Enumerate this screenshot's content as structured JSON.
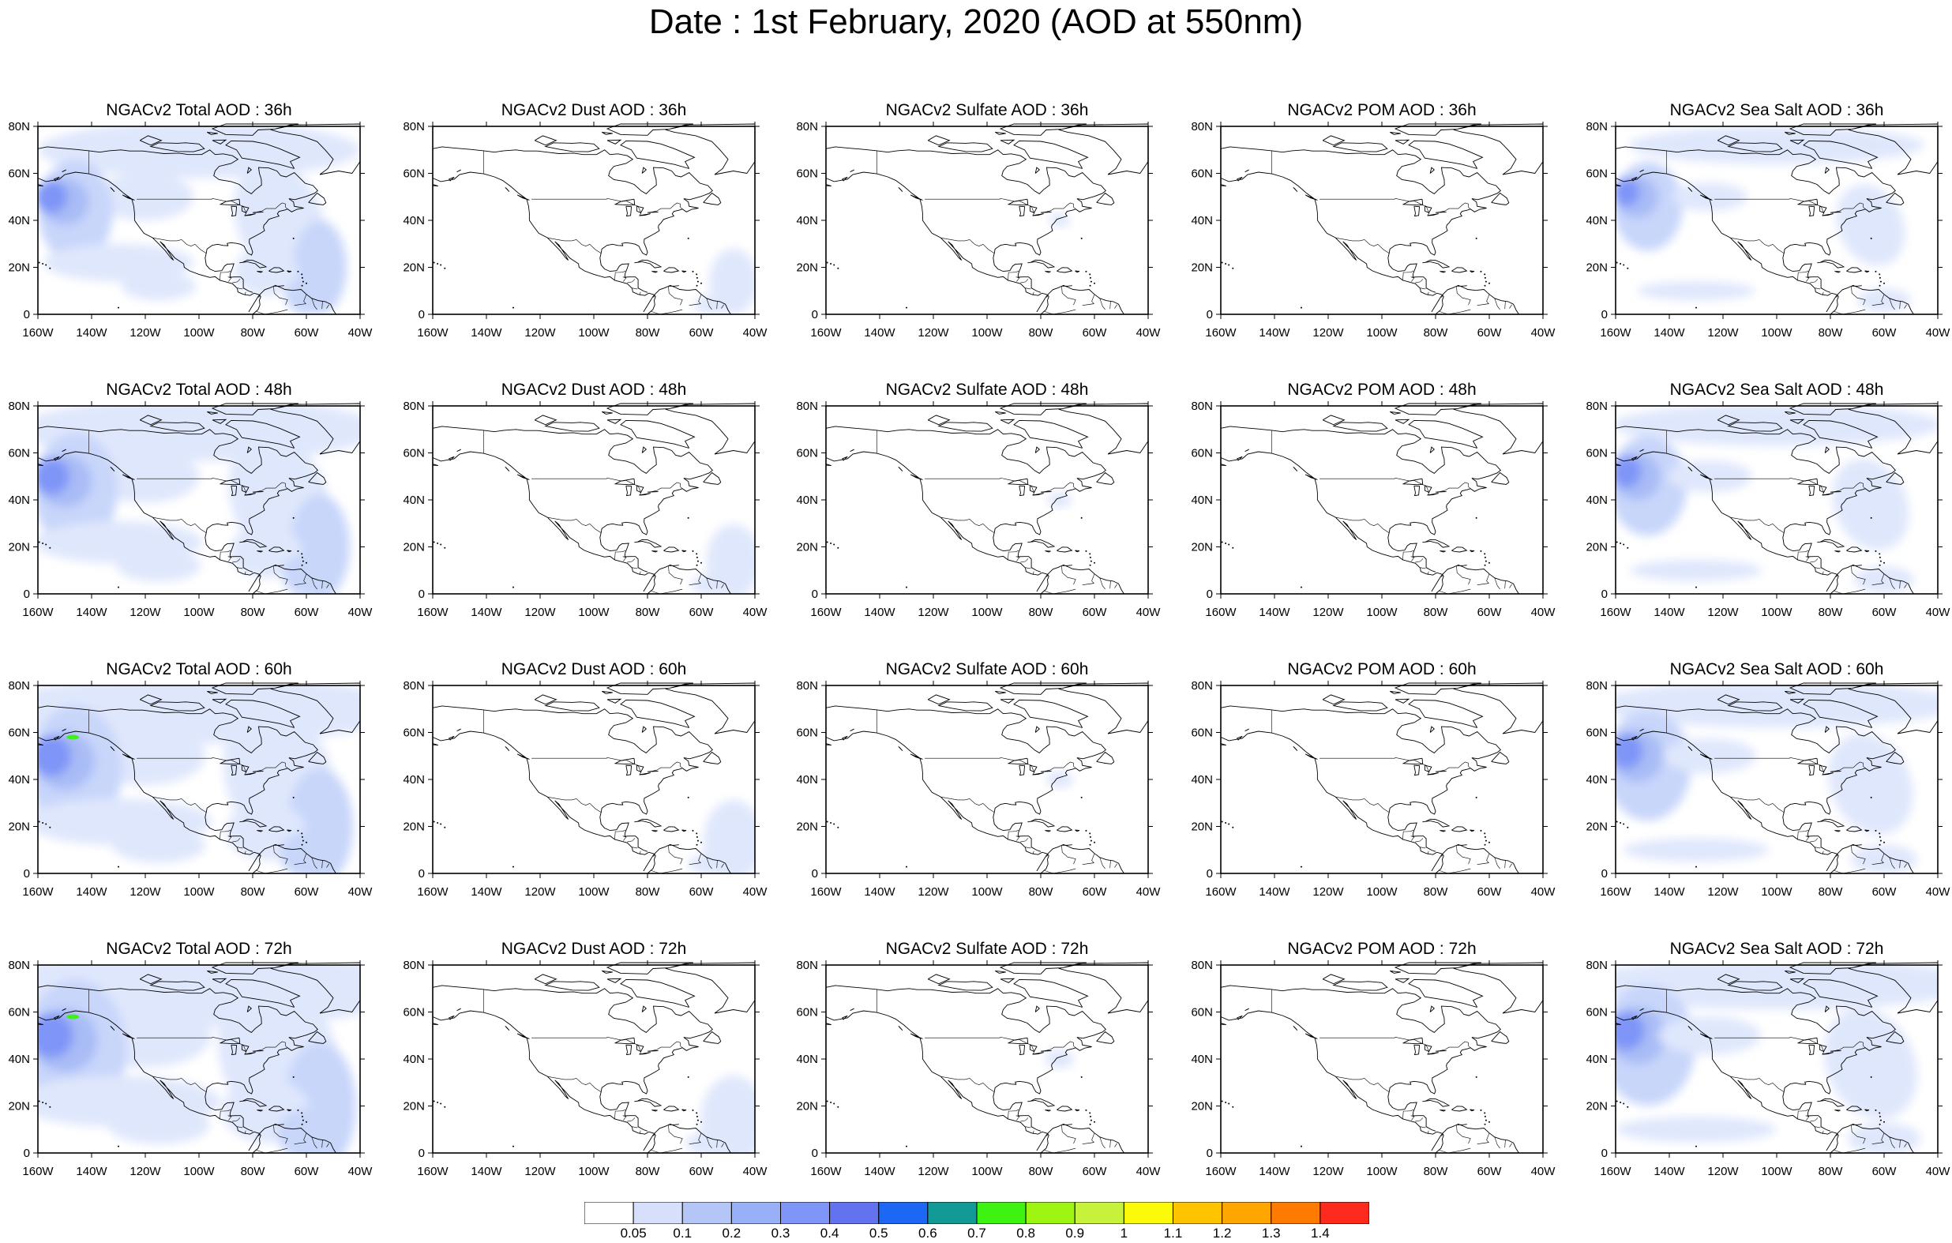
{
  "page": {
    "title": "Date : 1st February, 2020 (AOD at 550nm)"
  },
  "axes": {
    "lat_ticks": [
      "80N",
      "60N",
      "40N",
      "20N",
      "0"
    ],
    "lon_ticks": [
      "160W",
      "140W",
      "120W",
      "100W",
      "80W",
      "60W",
      "40W"
    ],
    "lon_range_deg": [
      -160,
      -40
    ],
    "lat_range_deg": [
      0,
      80
    ]
  },
  "panels": [
    [
      "NGACv2 Total AOD : 36h",
      "NGACv2 Dust AOD : 36h",
      "NGACv2 Sulfate AOD : 36h",
      "NGACv2 POM AOD : 36h",
      "NGACv2 Sea Salt AOD : 36h"
    ],
    [
      "NGACv2 Total AOD : 48h",
      "NGACv2 Dust AOD : 48h",
      "NGACv2 Sulfate AOD : 48h",
      "NGACv2 POM AOD : 48h",
      "NGACv2 Sea Salt AOD : 48h"
    ],
    [
      "NGACv2 Total AOD : 60h",
      "NGACv2 Dust AOD : 60h",
      "NGACv2 Sulfate AOD : 60h",
      "NGACv2 POM AOD : 60h",
      "NGACv2 Sea Salt AOD : 60h"
    ],
    [
      "NGACv2 Total AOD : 72h",
      "NGACv2 Dust AOD : 72h",
      "NGACv2 Sulfate AOD : 72h",
      "NGACv2 POM AOD : 72h",
      "NGACv2 Sea Salt  AOD : 72h"
    ]
  ],
  "colorbar": {
    "labels": [
      "0.05",
      "0.1",
      "0.2",
      "0.3",
      "0.4",
      "0.5",
      "0.6",
      "0.7",
      "0.8",
      "0.9",
      "1",
      "1.1",
      "1.2",
      "1.3",
      "1.4"
    ],
    "colors": [
      "#ffffff",
      "#d6e0fb",
      "#b4c6f6",
      "#97b0f8",
      "#7f95f7",
      "#6373f0",
      "#1c67f3",
      "#129a96",
      "#3ef212",
      "#9ef512",
      "#c6f23c",
      "#fafa0a",
      "#ffc300",
      "#ffa600",
      "#ff7a00",
      "#ff2a1e"
    ]
  },
  "aod_colors": {
    "very_light": "#dfe7fc",
    "light": "#c8d6fa",
    "medium": "#a9bcf6",
    "strong": "#7f95f7",
    "heavy": "#5a70ec",
    "peak": "#3ef212"
  }
}
